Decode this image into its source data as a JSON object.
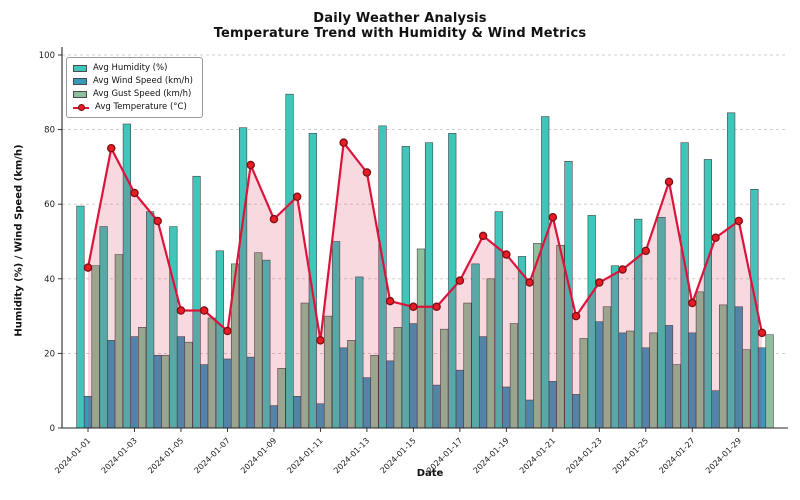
{
  "chart_data": {
    "type": "bar+line",
    "title": "Daily Weather Analysis",
    "subtitle": "Temperature Trend with Humidity & Wind Metrics",
    "xlabel": "Date",
    "ylabel": "Humidity (%) / Wind Speed (km/h)",
    "ylim": [
      0,
      100
    ],
    "yticks": [
      0,
      20,
      40,
      60,
      80,
      100
    ],
    "grid": "horizontal-dashed",
    "legend_position": "upper-left",
    "x_tick_labels": [
      "2024-01-01",
      "2024-01-03",
      "2024-01-05",
      "2024-01-07",
      "2024-01-09",
      "2024-01-11",
      "2024-01-13",
      "2024-01-15",
      "2024-01-17",
      "2024-01-19",
      "2024-01-21",
      "2024-01-23",
      "2024-01-25",
      "2024-01-27",
      "2024-01-29"
    ],
    "dates": [
      "2024-01-01",
      "2024-01-02",
      "2024-01-03",
      "2024-01-04",
      "2024-01-05",
      "2024-01-06",
      "2024-01-07",
      "2024-01-08",
      "2024-01-09",
      "2024-01-10",
      "2024-01-11",
      "2024-01-12",
      "2024-01-13",
      "2024-01-14",
      "2024-01-15",
      "2024-01-16",
      "2024-01-17",
      "2024-01-18",
      "2024-01-19",
      "2024-01-20",
      "2024-01-21",
      "2024-01-22",
      "2024-01-23",
      "2024-01-24",
      "2024-01-25",
      "2024-01-26",
      "2024-01-27",
      "2024-01-28",
      "2024-01-29",
      "2024-01-30"
    ],
    "series": [
      {
        "name": "Avg Humidity (%)",
        "type": "bar",
        "color": "#40c5bb",
        "values": [
          59.5,
          54,
          81.5,
          58,
          54,
          67.5,
          47.5,
          80.5,
          45,
          89.5,
          79,
          50,
          40.5,
          81,
          75.5,
          76.5,
          79,
          44,
          58,
          46,
          83.5,
          71.5,
          57,
          43.5,
          56,
          56.5,
          76.5,
          72,
          84.5,
          64
        ]
      },
      {
        "name": "Avg Wind Speed (km/h)",
        "type": "bar",
        "color": "#3a99bb",
        "values": [
          8.5,
          23.5,
          24.5,
          19.5,
          24.5,
          17,
          18.5,
          19,
          6,
          8.5,
          6.5,
          21.5,
          13.5,
          18,
          28,
          11.5,
          15.5,
          24.5,
          11,
          7.5,
          12.5,
          9,
          28.5,
          25.5,
          21.5,
          27.5,
          25.5,
          10,
          32.5,
          21.5
        ]
      },
      {
        "name": "Avg Gust Speed (km/h)",
        "type": "bar",
        "color": "#8fc09e",
        "values": [
          43.5,
          46.5,
          27,
          19.5,
          23,
          29.5,
          44,
          47,
          16,
          33.5,
          30,
          23.5,
          19.5,
          27,
          48,
          26.5,
          33.5,
          40,
          28,
          49.5,
          49,
          24,
          32.5,
          26,
          25.5,
          17,
          36.5,
          33,
          21,
          25
        ]
      },
      {
        "name": "Avg Temperature (°C)",
        "type": "line",
        "color": "#dc143c",
        "fill_color": "rgba(220,20,60,0.16)",
        "marker_fill": "#e81c24",
        "marker_edge": "#7d0f14",
        "values": [
          43,
          75,
          63,
          55.5,
          31.5,
          31.5,
          26,
          70.5,
          56,
          62,
          23.5,
          76.5,
          68.5,
          34,
          32.5,
          32.5,
          39.5,
          51.5,
          46.5,
          39,
          56.5,
          30,
          39,
          42.5,
          47.5,
          66,
          33.5,
          51,
          55.5,
          25.5
        ]
      }
    ]
  }
}
